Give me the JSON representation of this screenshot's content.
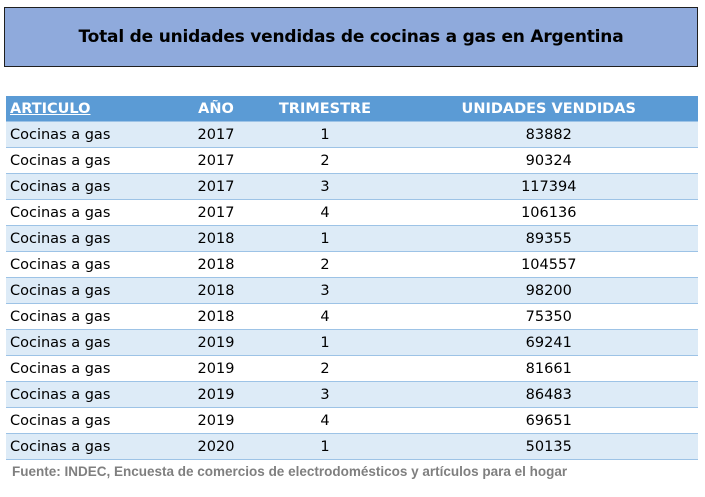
{
  "title": "Total de unidades vendidas de cocinas a gas en Argentina",
  "table": {
    "headers": {
      "articulo": "ARTICULO",
      "ano": "AÑO",
      "trimestre": "TRIMESTRE",
      "unidades": "UNIDADES VENDIDAS"
    },
    "rows": [
      {
        "articulo": "Cocinas a gas",
        "ano": "2017",
        "trimestre": "1",
        "unidades": "83882"
      },
      {
        "articulo": "Cocinas a gas",
        "ano": "2017",
        "trimestre": "2",
        "unidades": "90324"
      },
      {
        "articulo": "Cocinas a gas",
        "ano": "2017",
        "trimestre": "3",
        "unidades": "117394"
      },
      {
        "articulo": "Cocinas a gas",
        "ano": "2017",
        "trimestre": "4",
        "unidades": "106136"
      },
      {
        "articulo": "Cocinas a gas",
        "ano": "2018",
        "trimestre": "1",
        "unidades": "89355"
      },
      {
        "articulo": "Cocinas a gas",
        "ano": "2018",
        "trimestre": "2",
        "unidades": "104557"
      },
      {
        "articulo": "Cocinas a gas",
        "ano": "2018",
        "trimestre": "3",
        "unidades": "98200"
      },
      {
        "articulo": "Cocinas a gas",
        "ano": "2018",
        "trimestre": "4",
        "unidades": "75350"
      },
      {
        "articulo": "Cocinas a gas",
        "ano": "2019",
        "trimestre": "1",
        "unidades": "69241"
      },
      {
        "articulo": "Cocinas a gas",
        "ano": "2019",
        "trimestre": "2",
        "unidades": "81661"
      },
      {
        "articulo": "Cocinas a gas",
        "ano": "2019",
        "trimestre": "3",
        "unidades": "86483"
      },
      {
        "articulo": "Cocinas a gas",
        "ano": "2019",
        "trimestre": "4",
        "unidades": "69651"
      },
      {
        "articulo": "Cocinas a gas",
        "ano": "2020",
        "trimestre": "1",
        "unidades": "50135"
      }
    ]
  },
  "source": "Fuente: INDEC, Encuesta de comercios de electrodomésticos y artículos para el hogar",
  "colors": {
    "title_background": "#8faadc",
    "header_background": "#5b9bd5",
    "band_background": "#ddebf7",
    "source_text": "#7f7f7f"
  }
}
